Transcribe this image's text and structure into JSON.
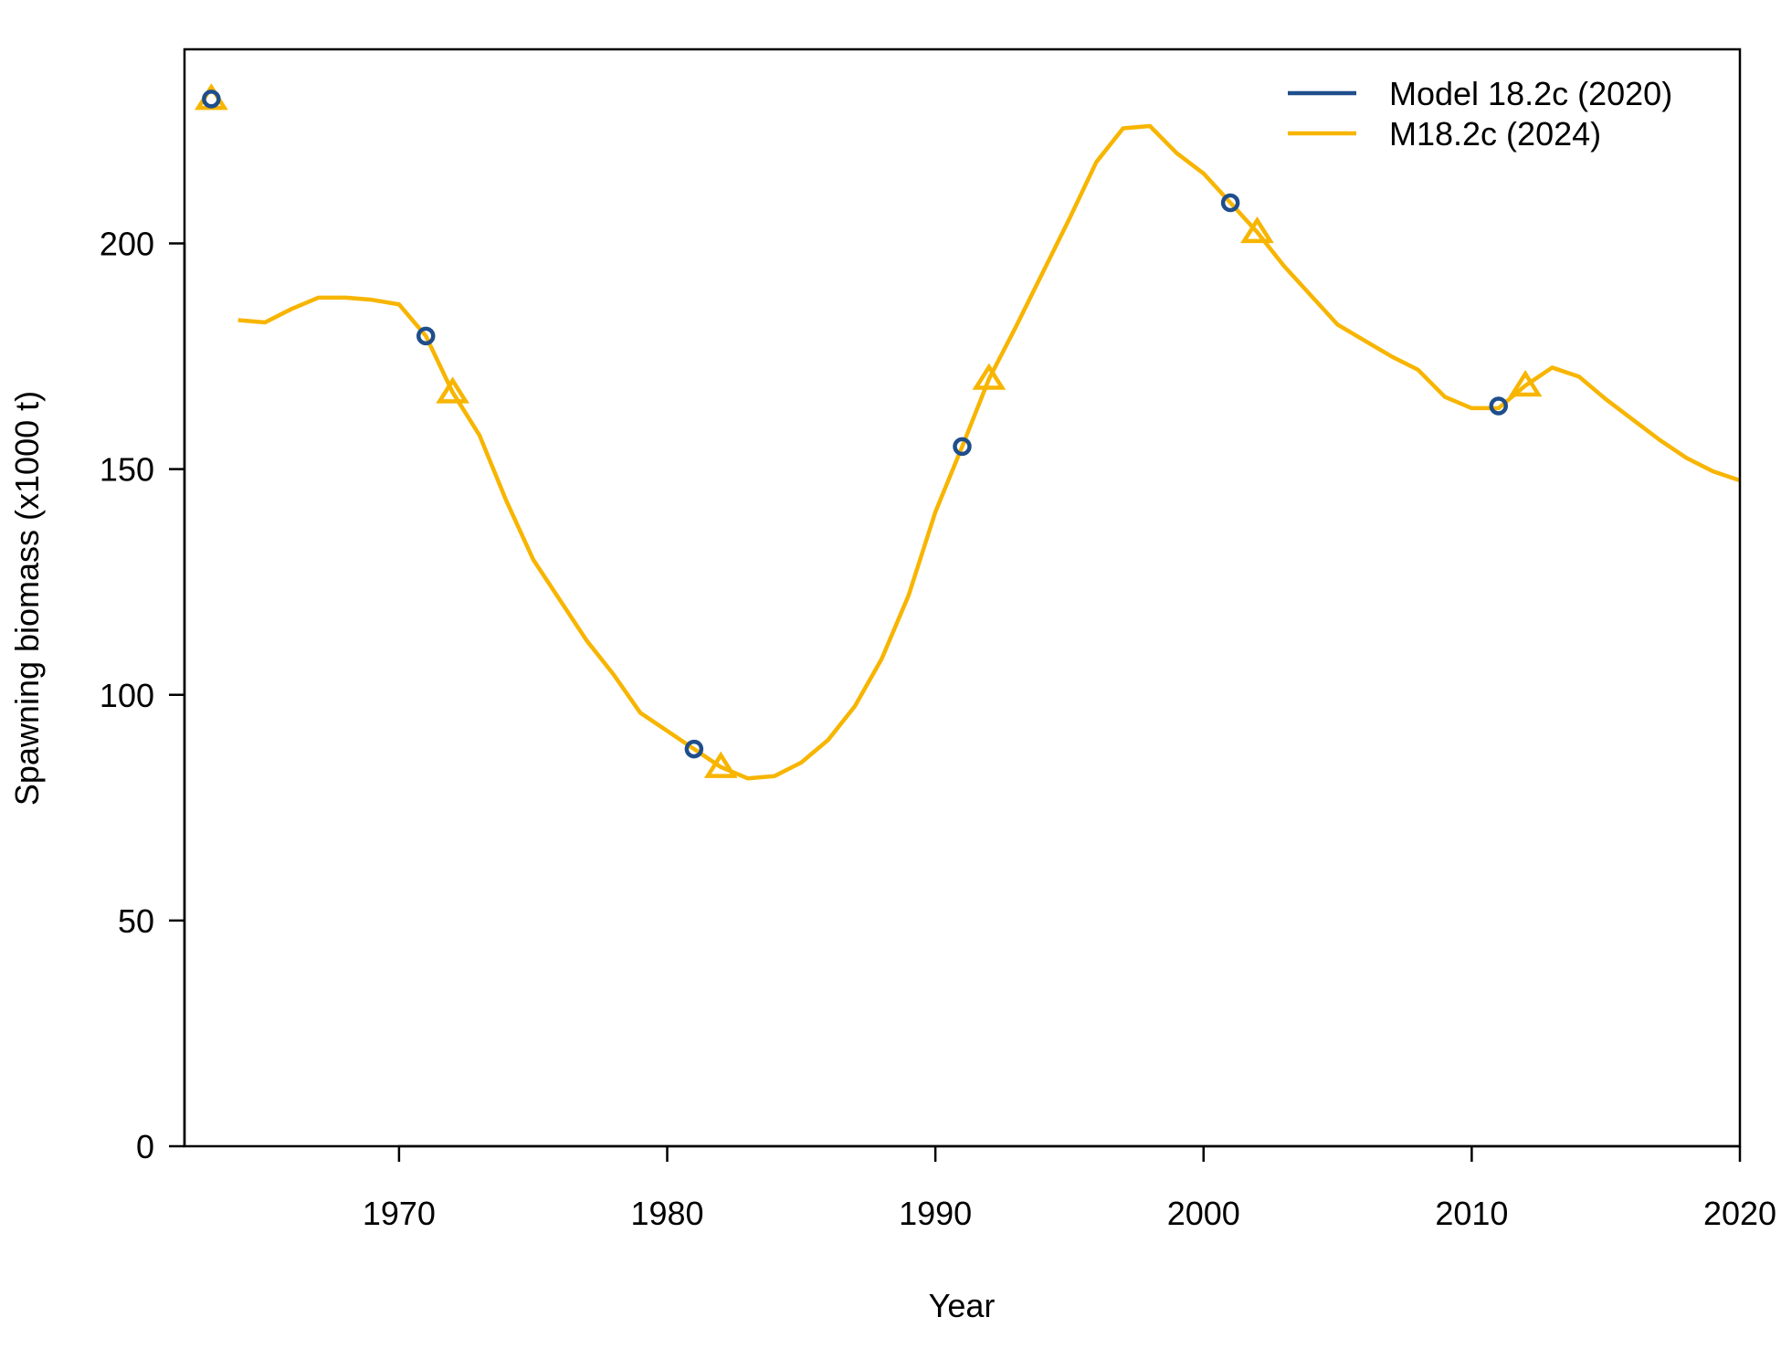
{
  "chart_data": {
    "type": "line",
    "title": "",
    "xlabel": "Year",
    "ylabel": "Spawning biomass (x1000 t)",
    "xlim": [
      1962,
      2020
    ],
    "ylim": [
      0,
      243
    ],
    "x_ticks": [
      1970,
      1980,
      1990,
      2000,
      2010,
      2020
    ],
    "y_ticks": [
      0,
      50,
      100,
      150,
      200
    ],
    "grid": false,
    "legend_position": "top-right",
    "series": [
      {
        "name": "Model 18.2c (2020)",
        "color": "#1F4E8C",
        "marker": "circle",
        "marker_years": [
          1963,
          1971,
          1981,
          1991,
          2001,
          2011
        ],
        "x": [
          1963,
          1971,
          1981,
          1991,
          2001,
          2011
        ],
        "values": [
          232,
          179.5,
          88,
          155,
          209,
          164
        ]
      },
      {
        "name": "M18.2c (2024)",
        "color": "#F7B500",
        "marker": "triangle",
        "marker_years": [
          1963,
          1972,
          1982,
          1992,
          2002,
          2012
        ],
        "x": [
          1963,
          1964,
          1965,
          1966,
          1967,
          1968,
          1969,
          1970,
          1971,
          1972,
          1973,
          1974,
          1975,
          1976,
          1977,
          1978,
          1979,
          1980,
          1981,
          1982,
          1983,
          1984,
          1985,
          1986,
          1987,
          1988,
          1989,
          1990,
          1991,
          1992,
          1993,
          1994,
          1995,
          1996,
          1997,
          1998,
          1999,
          2000,
          2001,
          2002,
          2003,
          2004,
          2005,
          2006,
          2007,
          2008,
          2009,
          2010,
          2011,
          2012,
          2013,
          2014,
          2015,
          2016,
          2017,
          2018,
          2019,
          2020
        ],
        "values": [
          232,
          183,
          182.5,
          185.5,
          188,
          188,
          187.5,
          186.5,
          179.5,
          167,
          157.5,
          143,
          130,
          121,
          112,
          104.5,
          96,
          92,
          88,
          84,
          81.5,
          82,
          85,
          90,
          97.5,
          108,
          122,
          140.5,
          155,
          170,
          181.5,
          193.5,
          205.5,
          218,
          225.5,
          226,
          220,
          215.5,
          209,
          202.5,
          195,
          188.5,
          182,
          178.5,
          175,
          172,
          166,
          163.5,
          163.5,
          168.5,
          172.5,
          170.5,
          165.5,
          161,
          156.5,
          152.5,
          149.5,
          147.5
        ]
      }
    ]
  }
}
